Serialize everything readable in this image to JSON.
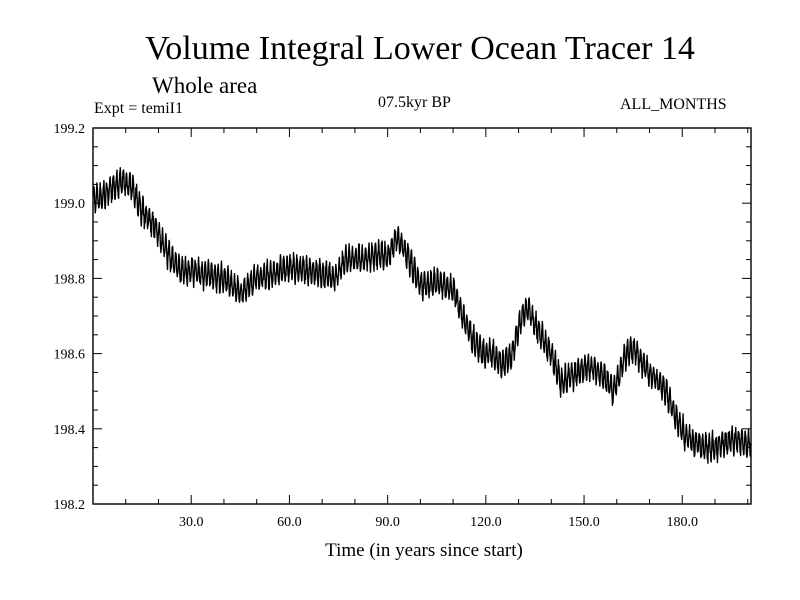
{
  "header": {
    "title": "Volume Integral Lower Ocean Tracer 14",
    "subtitle": "Whole area",
    "expt": "Expt = temiI1",
    "period": "07.5kyr BP",
    "months": "ALL_MONTHS"
  },
  "chart_data": {
    "type": "line",
    "title": "Volume Integral Lower Ocean Tracer 14",
    "xlabel": "Time (in years since start)",
    "ylabel": "",
    "xlim": [
      0,
      201
    ],
    "ylim": [
      198.2,
      199.2
    ],
    "x_ticks": [
      30,
      60,
      90,
      120,
      150,
      180
    ],
    "x_tick_labels": [
      "30.0",
      "60.0",
      "90.0",
      "120.0",
      "150.0",
      "180.0"
    ],
    "y_ticks": [
      198.2,
      198.4,
      198.6,
      198.8,
      199.0,
      199.2
    ],
    "y_tick_labels": [
      "198.2",
      "198.4",
      "198.6",
      "198.8",
      "199.0",
      "199.2"
    ],
    "series": [
      {
        "name": "Volume Integral Lower Ocean Tracer 14",
        "color": "#000000",
        "oscillation_amplitude": 0.03,
        "points_per_year": 12,
        "trend_x": [
          0,
          3,
          6,
          9,
          12,
          15,
          18,
          21,
          24,
          27,
          30,
          35,
          40,
          45,
          50,
          55,
          60,
          65,
          70,
          74,
          77,
          80,
          85,
          90,
          93,
          96,
          100,
          105,
          110,
          113,
          116,
          119,
          122,
          125,
          128,
          131,
          133,
          136,
          140,
          143,
          146,
          150,
          153,
          156,
          159,
          162,
          164,
          166,
          169,
          172,
          175,
          178,
          181,
          184,
          187,
          190,
          195,
          201
        ],
        "trend_y": [
          199.01,
          199.02,
          199.04,
          199.06,
          199.04,
          198.98,
          198.95,
          198.9,
          198.85,
          198.82,
          198.82,
          198.81,
          198.8,
          198.76,
          198.8,
          198.81,
          198.83,
          198.82,
          198.81,
          198.8,
          198.85,
          198.85,
          198.86,
          198.86,
          198.91,
          198.86,
          198.78,
          198.79,
          198.77,
          198.7,
          198.64,
          198.6,
          198.6,
          198.57,
          198.6,
          198.7,
          198.72,
          198.66,
          198.6,
          198.52,
          198.54,
          198.56,
          198.56,
          198.54,
          198.5,
          198.58,
          198.61,
          198.6,
          198.56,
          198.53,
          198.5,
          198.43,
          198.38,
          198.36,
          198.35,
          198.35,
          198.37,
          198.36
        ]
      }
    ]
  }
}
